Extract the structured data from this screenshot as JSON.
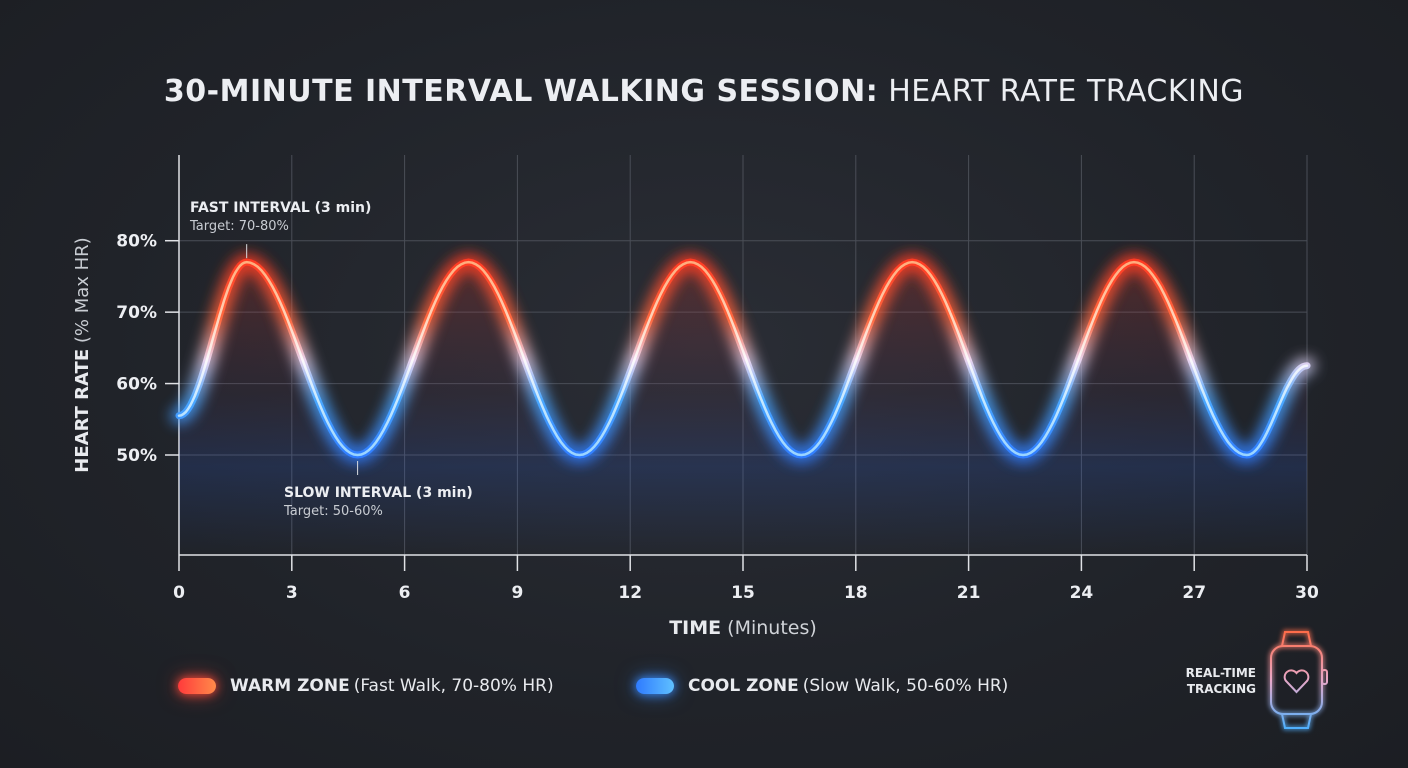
{
  "title": {
    "bold": "30-MINUTE INTERVAL WALKING SESSION:",
    "light": "HEART RATE TRACKING"
  },
  "chart_data": {
    "type": "line",
    "title": "30-MINUTE INTERVAL WALKING SESSION: HEART RATE TRACKING",
    "xlabel_bold": "TIME",
    "xlabel_light": "(Minutes)",
    "ylabel_bold": "HEART RATE",
    "ylabel_light": "(% Max HR)",
    "xlim": [
      0,
      30
    ],
    "ylim": [
      36,
      92
    ],
    "x_ticks": [
      "0",
      "3",
      "6",
      "9",
      "12",
      "15",
      "18",
      "21",
      "24",
      "27",
      "30"
    ],
    "x_tick_values": [
      0,
      3,
      6,
      9,
      12,
      15,
      18,
      21,
      24,
      27,
      30
    ],
    "y_ticks": [
      "50%",
      "60%",
      "70%",
      "80%"
    ],
    "y_tick_values": [
      50,
      60,
      70,
      80
    ],
    "grid": true,
    "series": [
      {
        "x": [
          0,
          1.8,
          4.75,
          7.7,
          10.65,
          13.6,
          16.55,
          19.5,
          22.45,
          25.4,
          28.4,
          30
        ],
        "y": [
          55.5,
          77,
          50,
          77,
          50,
          77,
          50,
          77,
          50,
          77,
          50,
          62.5
        ]
      }
    ],
    "annotations": [
      {
        "x": 1.8,
        "y": 77,
        "title": "FAST INTERVAL (3 min)",
        "text": "Target: 70-80%",
        "position": "above"
      },
      {
        "x": 4.75,
        "y": 50,
        "title": "SLOW INTERVAL (3 min)",
        "text": "Target: 50-60%",
        "position": "below"
      }
    ],
    "colors": {
      "warm": "#ff4a2e",
      "warm_light": "#ffb070",
      "cool": "#2f8bff",
      "cool_light": "#8fd6ff"
    }
  },
  "legend": [
    {
      "bold": "WARM ZONE",
      "light": "(Fast Walk, 70-80% HR)",
      "color": "#ff4a3a"
    },
    {
      "bold": "COOL ZONE",
      "light": "(Slow Walk, 50-60% HR)",
      "color": "#3a8cff"
    }
  ],
  "badge": {
    "line1": "REAL-TIME",
    "line2": "TRACKING",
    "icon": "smartwatch-heart-icon"
  }
}
